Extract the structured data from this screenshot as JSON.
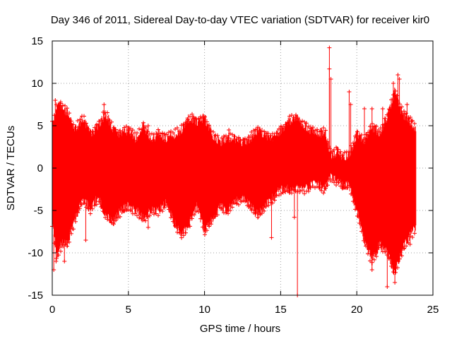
{
  "chart_data": {
    "type": "scatter",
    "title": "Day 346 of 2011, Sidereal Day-to-day VTEC variation (SDTVAR) for receiver kir0",
    "xlabel": "GPS time / hours",
    "ylabel": "SDTVAR / TECUs",
    "xlim": [
      0,
      25
    ],
    "ylim": [
      -15,
      15
    ],
    "xticks": [
      0,
      5,
      10,
      15,
      20,
      25
    ],
    "yticks": [
      -15,
      -10,
      -5,
      0,
      5,
      10,
      15
    ],
    "grid": true,
    "marker": "+",
    "series_color": "#ff0000",
    "envelope": {
      "hours": [
        0.0,
        0.3,
        0.6,
        1.0,
        1.5,
        2.0,
        2.5,
        3.0,
        3.5,
        4.0,
        4.5,
        5.0,
        5.5,
        6.0,
        6.5,
        7.0,
        7.5,
        8.0,
        8.5,
        9.0,
        9.5,
        10.0,
        10.5,
        11.0,
        11.5,
        12.0,
        12.5,
        13.0,
        13.5,
        14.0,
        14.5,
        15.0,
        15.5,
        16.0,
        16.5,
        17.0,
        17.5,
        17.9,
        18.3,
        18.7,
        19.0,
        19.5,
        20.0,
        20.5,
        21.0,
        21.5,
        22.0,
        22.5,
        23.0,
        23.5,
        23.9
      ],
      "upper": [
        5.5,
        7.0,
        7.5,
        6.5,
        4.5,
        6.0,
        4.0,
        5.0,
        6.5,
        4.5,
        4.0,
        4.5,
        3.5,
        5.0,
        3.5,
        4.0,
        3.5,
        4.0,
        4.5,
        6.0,
        5.5,
        6.0,
        4.0,
        3.0,
        3.5,
        3.5,
        3.0,
        3.5,
        4.5,
        4.0,
        3.5,
        4.5,
        5.5,
        6.0,
        5.0,
        4.5,
        4.0,
        4.5,
        1.5,
        2.0,
        1.5,
        1.5,
        4.0,
        3.0,
        5.0,
        4.0,
        6.0,
        9.0,
        6.5,
        5.5,
        4.5
      ],
      "lower": [
        -6.5,
        -10.5,
        -9.0,
        -9.0,
        -6.0,
        -3.5,
        -5.0,
        -3.5,
        -5.5,
        -6.5,
        -5.0,
        -4.5,
        -5.0,
        -6.0,
        -5.0,
        -5.0,
        -4.0,
        -6.5,
        -8.0,
        -6.5,
        -4.5,
        -7.5,
        -6.0,
        -4.5,
        -5.0,
        -4.0,
        -3.5,
        -4.5,
        -5.5,
        -4.5,
        -3.5,
        -2.5,
        -2.5,
        -2.5,
        -2.5,
        -2.0,
        -2.0,
        -2.5,
        -1.0,
        -1.5,
        -2.0,
        -2.0,
        -5.0,
        -8.5,
        -11.0,
        -9.0,
        -10.0,
        -12.5,
        -9.5,
        -8.0,
        -7.0
      ]
    },
    "outliers": [
      {
        "x": 0.2,
        "y": 8.0
      },
      {
        "x": 0.1,
        "y": -12.0
      },
      {
        "x": 0.25,
        "y": -11.0
      },
      {
        "x": 0.55,
        "y": 7.8
      },
      {
        "x": 0.8,
        "y": -11.0
      },
      {
        "x": 2.2,
        "y": -8.5
      },
      {
        "x": 3.4,
        "y": 7.5
      },
      {
        "x": 6.3,
        "y": 5.0
      },
      {
        "x": 6.3,
        "y": -7.0
      },
      {
        "x": 11.6,
        "y": 4.5
      },
      {
        "x": 14.4,
        "y": -8.2
      },
      {
        "x": 14.5,
        "y": 3.5
      },
      {
        "x": 15.5,
        "y": 5.0
      },
      {
        "x": 15.9,
        "y": -5.8
      },
      {
        "x": 16.1,
        "y": -15.0
      },
      {
        "x": 18.2,
        "y": 14.2
      },
      {
        "x": 18.2,
        "y": 11.7
      },
      {
        "x": 18.3,
        "y": 10.5
      },
      {
        "x": 19.5,
        "y": 9.0
      },
      {
        "x": 19.6,
        "y": 7.5
      },
      {
        "x": 20.5,
        "y": 7.0
      },
      {
        "x": 21.0,
        "y": 7.0
      },
      {
        "x": 21.0,
        "y": -12.0
      },
      {
        "x": 21.7,
        "y": 7.0
      },
      {
        "x": 22.0,
        "y": -14.0
      },
      {
        "x": 22.4,
        "y": 10.0
      },
      {
        "x": 22.5,
        "y": -13.5
      },
      {
        "x": 22.7,
        "y": 11.0
      },
      {
        "x": 22.8,
        "y": 10.5
      },
      {
        "x": 23.3,
        "y": 7.5
      },
      {
        "x": 23.1,
        "y": -9.5
      },
      {
        "x": 23.6,
        "y": 5.5
      },
      {
        "x": 23.5,
        "y": -9.0
      }
    ]
  }
}
